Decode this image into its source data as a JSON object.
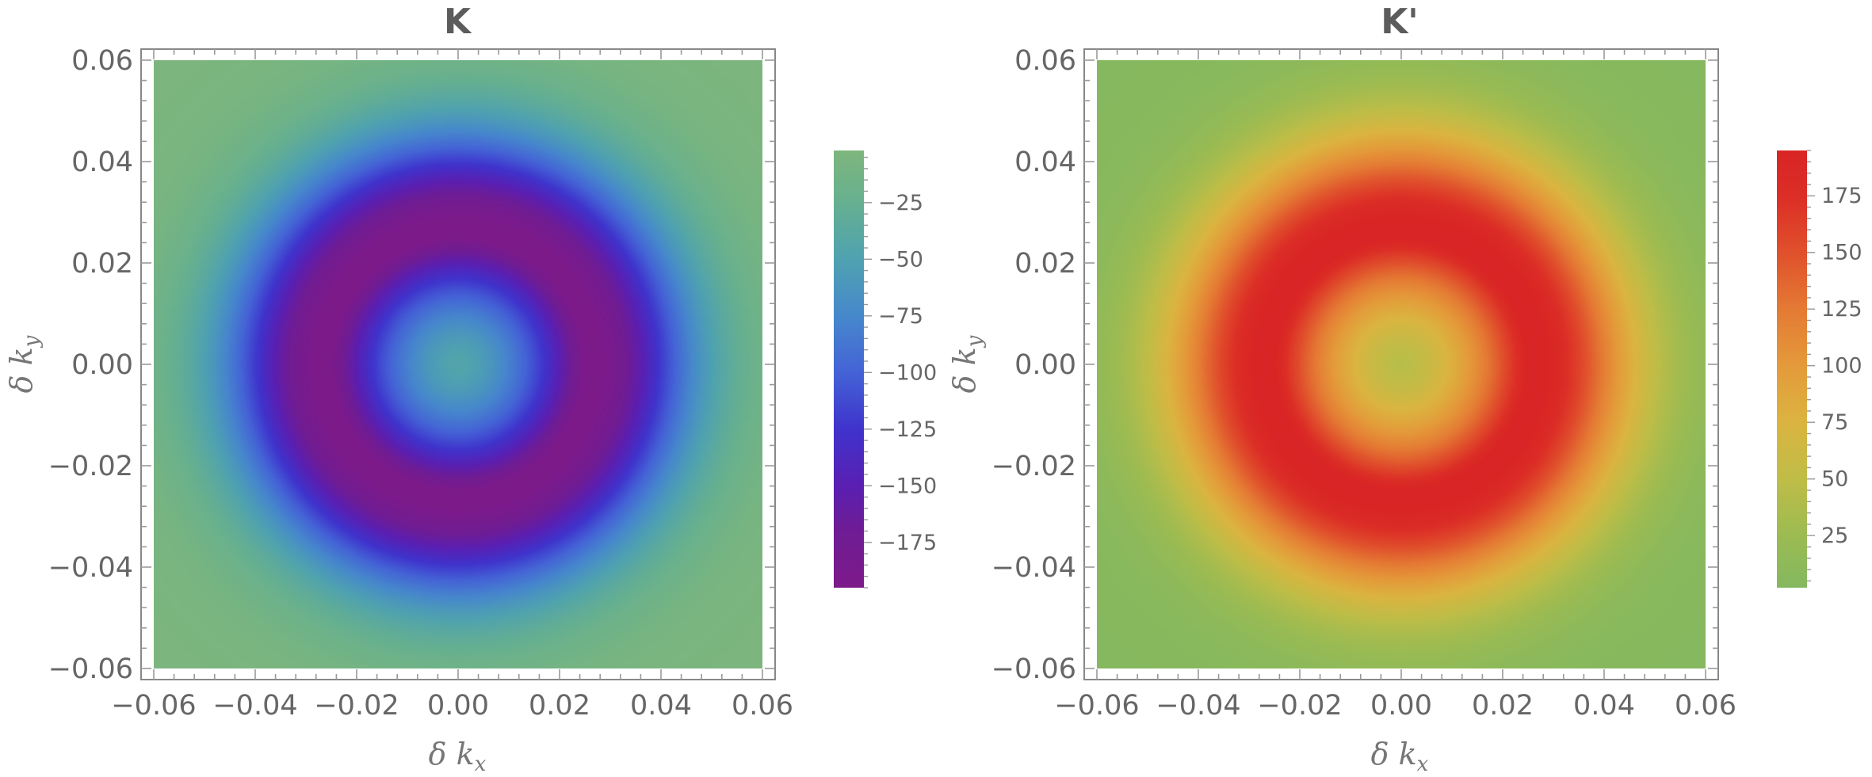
{
  "chart_data": [
    {
      "type": "heatmap",
      "title": "K",
      "xlabel": "δ k",
      "xlabel_sub": "x",
      "ylabel": "δ k",
      "ylabel_sub": "y",
      "xlim": [
        -0.06,
        0.06
      ],
      "ylim": [
        -0.06,
        0.06
      ],
      "xticks": [
        -0.06,
        -0.04,
        -0.02,
        0.0,
        0.02,
        0.04,
        0.06
      ],
      "xtick_labels": [
        "−0.06",
        "−0.04",
        "−0.02",
        "0.00",
        "0.02",
        "0.04",
        "0.06"
      ],
      "yticks": [
        0.06,
        0.04,
        0.02,
        0.0,
        -0.02,
        -0.04,
        -0.06
      ],
      "ytick_labels": [
        "0.06",
        "0.04",
        "0.02",
        "0.00",
        "−0.02",
        "−0.04",
        "−0.06"
      ],
      "pattern": "radially symmetric ring: weak at center, extremum ring at |δk| ≈ 0.02–0.03, decaying to ~0 at the edges",
      "value_range": [
        -195,
        -2
      ],
      "ring_peak_radius": 0.025,
      "center_value": -45,
      "edge_value": -5,
      "colorbar": {
        "ticks": [
          -25,
          -50,
          -75,
          -100,
          -125,
          -150,
          -175
        ],
        "tick_labels": [
          "−25",
          "−50",
          "−75",
          "−100",
          "−125",
          "−150",
          "−175"
        ],
        "min": -195,
        "max": -2,
        "stops": [
          {
            "v": -195,
            "color": "#7d1a8a"
          },
          {
            "v": -170,
            "color": "#6f1c94"
          },
          {
            "v": -150,
            "color": "#5a1fb2"
          },
          {
            "v": -125,
            "color": "#3f33cc"
          },
          {
            "v": -100,
            "color": "#4463d6"
          },
          {
            "v": -75,
            "color": "#4688cc"
          },
          {
            "v": -50,
            "color": "#4fa2b0"
          },
          {
            "v": -25,
            "color": "#66b090"
          },
          {
            "v": -2,
            "color": "#7eb67c"
          }
        ]
      }
    },
    {
      "type": "heatmap",
      "title": "K'",
      "xlabel": "δ k",
      "xlabel_sub": "x",
      "ylabel": "δ k",
      "ylabel_sub": "y",
      "xlim": [
        -0.06,
        0.06
      ],
      "ylim": [
        -0.06,
        0.06
      ],
      "xticks": [
        -0.06,
        -0.04,
        -0.02,
        0.0,
        0.02,
        0.04,
        0.06
      ],
      "xtick_labels": [
        "−0.06",
        "−0.04",
        "−0.02",
        "0.00",
        "0.02",
        "0.04",
        "0.06"
      ],
      "yticks": [
        0.06,
        0.04,
        0.02,
        0.0,
        -0.02,
        -0.04,
        -0.06
      ],
      "ytick_labels": [
        "0.06",
        "0.04",
        "0.02",
        "0.00",
        "−0.02",
        "−0.04",
        "−0.06"
      ],
      "pattern": "radially symmetric ring: weak at center, extremum ring at |δk| ≈ 0.02–0.03, decaying to ~0 at the edges",
      "value_range": [
        2,
        195
      ],
      "ring_peak_radius": 0.025,
      "center_value": 45,
      "edge_value": 5,
      "colorbar": {
        "ticks": [
          175,
          150,
          125,
          100,
          75,
          50,
          25
        ],
        "tick_labels": [
          "175",
          "150",
          "125",
          "100",
          "75",
          "50",
          "25"
        ],
        "min": 2,
        "max": 195,
        "stops": [
          {
            "v": 2,
            "color": "#84b860"
          },
          {
            "v": 25,
            "color": "#9cbb52"
          },
          {
            "v": 50,
            "color": "#bfbd47"
          },
          {
            "v": 75,
            "color": "#dbb440"
          },
          {
            "v": 100,
            "color": "#e49a3a"
          },
          {
            "v": 125,
            "color": "#e47a34"
          },
          {
            "v": 150,
            "color": "#e0502c"
          },
          {
            "v": 175,
            "color": "#dc2d26"
          },
          {
            "v": 195,
            "color": "#d92525"
          }
        ]
      }
    }
  ]
}
